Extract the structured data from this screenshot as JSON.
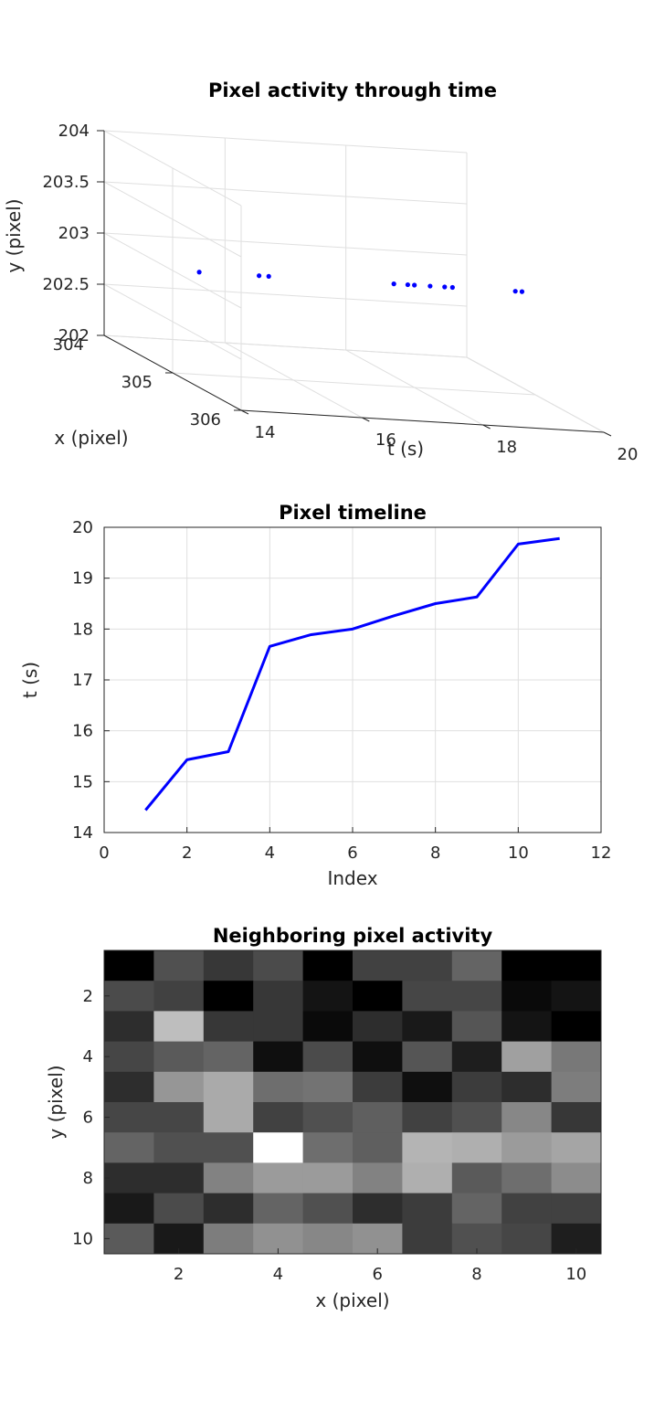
{
  "chart_data": [
    {
      "type": "scatter",
      "title": "Pixel activity through time",
      "xlabel": "t (s)",
      "ylabel": "y (pixel)",
      "zlabel": "x (pixel)",
      "t_lim": [
        14,
        20
      ],
      "t_ticks": [
        14,
        16,
        18,
        20
      ],
      "y_lim": [
        202,
        204
      ],
      "y_ticks": [
        202,
        202.5,
        203,
        203.5,
        204
      ],
      "x_lim": [
        304,
        306
      ],
      "x_ticks": [
        304,
        305,
        306
      ],
      "t": [
        14.44,
        15.43,
        15.59,
        17.66,
        17.89,
        18.0,
        18.26,
        18.5,
        18.63,
        19.67,
        19.78
      ],
      "y": [
        203,
        203,
        203,
        203,
        203,
        203,
        203,
        203,
        203,
        203,
        203
      ],
      "x": [
        305,
        305,
        305,
        305,
        305,
        305,
        305,
        305,
        305,
        305,
        305
      ],
      "marker_color": "#0000ff"
    },
    {
      "type": "line",
      "title": "Pixel timeline",
      "xlabel": "Index",
      "ylabel": "t (s)",
      "xlim": [
        0,
        12
      ],
      "ylim": [
        14,
        20
      ],
      "x_ticks": [
        0,
        2,
        4,
        6,
        8,
        10,
        12
      ],
      "y_ticks": [
        14,
        15,
        16,
        17,
        18,
        19,
        20
      ],
      "grid": true,
      "x": [
        1,
        2,
        3,
        4,
        5,
        6,
        7,
        8,
        9,
        10,
        11
      ],
      "y": [
        14.44,
        15.43,
        15.59,
        17.66,
        17.89,
        18.0,
        18.26,
        18.5,
        18.63,
        19.67,
        19.78
      ],
      "line_color": "#0000ff"
    },
    {
      "type": "heatmap",
      "title": "Neighboring pixel activity",
      "xlabel": "x (pixel)",
      "ylabel": "y (pixel)",
      "x_ticks": [
        2,
        4,
        6,
        8,
        10
      ],
      "y_ticks": [
        2,
        4,
        6,
        8,
        10
      ],
      "colormap": "gray",
      "values": [
        [
          0,
          80,
          55,
          75,
          0,
          65,
          65,
          100,
          0,
          0
        ],
        [
          75,
          65,
          0,
          55,
          20,
          0,
          70,
          70,
          10,
          20
        ],
        [
          45,
          190,
          55,
          55,
          10,
          45,
          25,
          85,
          20,
          0
        ],
        [
          70,
          90,
          100,
          15,
          75,
          15,
          85,
          30,
          160,
          120
        ],
        [
          45,
          150,
          170,
          110,
          115,
          60,
          15,
          60,
          45,
          125
        ],
        [
          70,
          70,
          170,
          65,
          80,
          95,
          65,
          80,
          135,
          55
        ],
        [
          100,
          80,
          80,
          255,
          110,
          95,
          180,
          175,
          155,
          165
        ],
        [
          45,
          45,
          130,
          155,
          155,
          130,
          175,
          90,
          110,
          140
        ],
        [
          25,
          75,
          45,
          100,
          80,
          45,
          60,
          100,
          65,
          65
        ],
        [
          90,
          25,
          125,
          145,
          135,
          145,
          60,
          80,
          70,
          30
        ]
      ]
    }
  ]
}
